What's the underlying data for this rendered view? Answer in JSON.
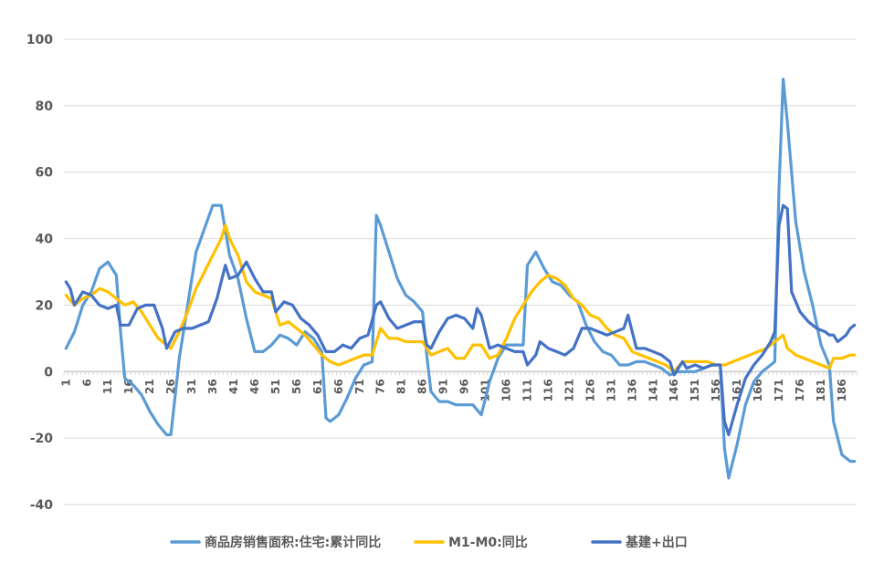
{
  "chart_data": {
    "type": "line",
    "title": "",
    "xlabel": "",
    "ylabel": "",
    "ylim": [
      -40,
      100
    ],
    "ytick_step": 20,
    "x_range": [
      1,
      189
    ],
    "x_ticks": [
      1,
      6,
      11,
      16,
      21,
      26,
      31,
      36,
      41,
      46,
      51,
      56,
      61,
      66,
      71,
      76,
      81,
      86,
      91,
      96,
      101,
      106,
      111,
      116,
      121,
      126,
      131,
      136,
      141,
      146,
      151,
      156,
      161,
      166,
      171,
      176,
      181,
      186
    ],
    "grid": "horizontal",
    "legend_position": "bottom",
    "series": [
      {
        "name": "商品房销售面积:住宅:累计同比",
        "color": "#5B9BD5",
        "keypoints": [
          [
            1,
            7
          ],
          [
            3,
            12
          ],
          [
            5,
            20
          ],
          [
            7,
            24
          ],
          [
            9,
            31
          ],
          [
            11,
            33
          ],
          [
            13,
            29
          ],
          [
            14,
            12
          ],
          [
            15,
            -2
          ],
          [
            17,
            -4
          ],
          [
            19,
            -7
          ],
          [
            21,
            -12
          ],
          [
            23,
            -16
          ],
          [
            25,
            -19
          ],
          [
            26,
            -19
          ],
          [
            28,
            4
          ],
          [
            30,
            20
          ],
          [
            32,
            36
          ],
          [
            34,
            43
          ],
          [
            36,
            50
          ],
          [
            38,
            50
          ],
          [
            40,
            35
          ],
          [
            42,
            28
          ],
          [
            44,
            16
          ],
          [
            46,
            6
          ],
          [
            48,
            6
          ],
          [
            50,
            8
          ],
          [
            52,
            11
          ],
          [
            54,
            10
          ],
          [
            56,
            8
          ],
          [
            58,
            12
          ],
          [
            60,
            10
          ],
          [
            62,
            6
          ],
          [
            63,
            -14
          ],
          [
            64,
            -15
          ],
          [
            66,
            -13
          ],
          [
            68,
            -8
          ],
          [
            70,
            -2
          ],
          [
            72,
            2
          ],
          [
            74,
            3
          ],
          [
            75,
            47
          ],
          [
            76,
            44
          ],
          [
            78,
            36
          ],
          [
            80,
            28
          ],
          [
            82,
            23
          ],
          [
            84,
            21
          ],
          [
            86,
            18
          ],
          [
            87,
            5
          ],
          [
            88,
            -6
          ],
          [
            90,
            -9
          ],
          [
            92,
            -9
          ],
          [
            94,
            -10
          ],
          [
            96,
            -10
          ],
          [
            98,
            -10
          ],
          [
            100,
            -13
          ],
          [
            102,
            -3
          ],
          [
            104,
            4
          ],
          [
            106,
            8
          ],
          [
            108,
            8
          ],
          [
            110,
            8
          ],
          [
            111,
            32
          ],
          [
            113,
            36
          ],
          [
            115,
            31
          ],
          [
            117,
            27
          ],
          [
            119,
            26
          ],
          [
            121,
            23
          ],
          [
            123,
            21
          ],
          [
            125,
            14
          ],
          [
            127,
            9
          ],
          [
            129,
            6
          ],
          [
            131,
            5
          ],
          [
            133,
            2
          ],
          [
            135,
            2
          ],
          [
            137,
            3
          ],
          [
            139,
            3
          ],
          [
            141,
            2
          ],
          [
            143,
            1
          ],
          [
            145,
            -1
          ],
          [
            147,
            0
          ],
          [
            149,
            0
          ],
          [
            151,
            0
          ],
          [
            153,
            1
          ],
          [
            155,
            2
          ],
          [
            157,
            2
          ],
          [
            158,
            -23
          ],
          [
            159,
            -32
          ],
          [
            161,
            -22
          ],
          [
            163,
            -10
          ],
          [
            165,
            -3
          ],
          [
            167,
            0
          ],
          [
            169,
            2
          ],
          [
            170,
            3
          ],
          [
            171,
            55
          ],
          [
            172,
            88
          ],
          [
            173,
            75
          ],
          [
            175,
            45
          ],
          [
            177,
            30
          ],
          [
            179,
            20
          ],
          [
            181,
            8
          ],
          [
            183,
            2
          ],
          [
            184,
            -15
          ],
          [
            186,
            -25
          ],
          [
            188,
            -27
          ],
          [
            189,
            -27
          ]
        ]
      },
      {
        "name": "M1-M0:同比",
        "color": "#FFC000",
        "keypoints": [
          [
            1,
            23
          ],
          [
            3,
            20
          ],
          [
            5,
            22
          ],
          [
            7,
            23
          ],
          [
            9,
            25
          ],
          [
            11,
            24
          ],
          [
            13,
            22
          ],
          [
            15,
            20
          ],
          [
            17,
            21
          ],
          [
            19,
            18
          ],
          [
            21,
            14
          ],
          [
            23,
            10
          ],
          [
            25,
            8
          ],
          [
            26,
            7
          ],
          [
            28,
            12
          ],
          [
            30,
            18
          ],
          [
            32,
            25
          ],
          [
            34,
            30
          ],
          [
            36,
            35
          ],
          [
            38,
            40
          ],
          [
            39,
            44
          ],
          [
            40,
            40
          ],
          [
            42,
            35
          ],
          [
            44,
            27
          ],
          [
            46,
            24
          ],
          [
            48,
            23
          ],
          [
            50,
            22
          ],
          [
            52,
            14
          ],
          [
            54,
            15
          ],
          [
            56,
            13
          ],
          [
            58,
            11
          ],
          [
            60,
            8
          ],
          [
            62,
            5
          ],
          [
            64,
            3
          ],
          [
            66,
            2
          ],
          [
            68,
            3
          ],
          [
            70,
            4
          ],
          [
            72,
            5
          ],
          [
            74,
            5
          ],
          [
            76,
            13
          ],
          [
            78,
            10
          ],
          [
            80,
            10
          ],
          [
            82,
            9
          ],
          [
            84,
            9
          ],
          [
            86,
            9
          ],
          [
            88,
            5
          ],
          [
            90,
            6
          ],
          [
            92,
            7
          ],
          [
            94,
            4
          ],
          [
            96,
            4
          ],
          [
            98,
            8
          ],
          [
            100,
            8
          ],
          [
            102,
            4
          ],
          [
            104,
            5
          ],
          [
            106,
            10
          ],
          [
            108,
            16
          ],
          [
            110,
            20
          ],
          [
            112,
            24
          ],
          [
            114,
            27
          ],
          [
            116,
            29
          ],
          [
            118,
            28
          ],
          [
            120,
            26
          ],
          [
            122,
            22
          ],
          [
            124,
            20
          ],
          [
            126,
            17
          ],
          [
            128,
            16
          ],
          [
            130,
            13
          ],
          [
            132,
            11
          ],
          [
            134,
            10
          ],
          [
            136,
            6
          ],
          [
            138,
            5
          ],
          [
            140,
            4
          ],
          [
            142,
            3
          ],
          [
            144,
            2
          ],
          [
            146,
            0
          ],
          [
            148,
            3
          ],
          [
            150,
            3
          ],
          [
            152,
            3
          ],
          [
            154,
            3
          ],
          [
            156,
            2
          ],
          [
            158,
            2
          ],
          [
            160,
            3
          ],
          [
            162,
            4
          ],
          [
            164,
            5
          ],
          [
            166,
            6
          ],
          [
            168,
            7
          ],
          [
            170,
            9
          ],
          [
            172,
            11
          ],
          [
            173,
            7
          ],
          [
            175,
            5
          ],
          [
            177,
            4
          ],
          [
            179,
            3
          ],
          [
            181,
            2
          ],
          [
            183,
            1
          ],
          [
            184,
            4
          ],
          [
            186,
            4
          ],
          [
            188,
            5
          ],
          [
            189,
            5
          ]
        ]
      },
      {
        "name": "基建+出口",
        "color": "#4472C4",
        "keypoints": [
          [
            1,
            27
          ],
          [
            2,
            25
          ],
          [
            3,
            20
          ],
          [
            5,
            24
          ],
          [
            7,
            23
          ],
          [
            9,
            20
          ],
          [
            11,
            19
          ],
          [
            13,
            20
          ],
          [
            14,
            14
          ],
          [
            16,
            14
          ],
          [
            18,
            19
          ],
          [
            20,
            20
          ],
          [
            22,
            20
          ],
          [
            24,
            13
          ],
          [
            25,
            7
          ],
          [
            27,
            12
          ],
          [
            29,
            13
          ],
          [
            31,
            13
          ],
          [
            33,
            14
          ],
          [
            35,
            15
          ],
          [
            37,
            22
          ],
          [
            39,
            32
          ],
          [
            40,
            28
          ],
          [
            42,
            29
          ],
          [
            44,
            33
          ],
          [
            46,
            28
          ],
          [
            48,
            24
          ],
          [
            50,
            24
          ],
          [
            51,
            18
          ],
          [
            53,
            21
          ],
          [
            55,
            20
          ],
          [
            57,
            16
          ],
          [
            59,
            14
          ],
          [
            61,
            11
          ],
          [
            63,
            6
          ],
          [
            65,
            6
          ],
          [
            67,
            8
          ],
          [
            69,
            7
          ],
          [
            71,
            10
          ],
          [
            73,
            11
          ],
          [
            75,
            20
          ],
          [
            76,
            21
          ],
          [
            78,
            16
          ],
          [
            80,
            13
          ],
          [
            82,
            14
          ],
          [
            84,
            15
          ],
          [
            86,
            15
          ],
          [
            87,
            8
          ],
          [
            88,
            7
          ],
          [
            90,
            12
          ],
          [
            92,
            16
          ],
          [
            94,
            17
          ],
          [
            96,
            16
          ],
          [
            98,
            13
          ],
          [
            99,
            19
          ],
          [
            100,
            17
          ],
          [
            102,
            7
          ],
          [
            104,
            8
          ],
          [
            106,
            7
          ],
          [
            108,
            6
          ],
          [
            110,
            6
          ],
          [
            111,
            2
          ],
          [
            113,
            5
          ],
          [
            114,
            9
          ],
          [
            116,
            7
          ],
          [
            118,
            6
          ],
          [
            120,
            5
          ],
          [
            122,
            7
          ],
          [
            124,
            13
          ],
          [
            126,
            13
          ],
          [
            128,
            12
          ],
          [
            130,
            11
          ],
          [
            132,
            12
          ],
          [
            134,
            13
          ],
          [
            135,
            17
          ],
          [
            137,
            7
          ],
          [
            139,
            7
          ],
          [
            141,
            6
          ],
          [
            143,
            5
          ],
          [
            145,
            3
          ],
          [
            146,
            -1
          ],
          [
            148,
            3
          ],
          [
            149,
            1
          ],
          [
            151,
            2
          ],
          [
            153,
            1
          ],
          [
            155,
            2
          ],
          [
            157,
            2
          ],
          [
            158,
            -15
          ],
          [
            159,
            -19
          ],
          [
            161,
            -10
          ],
          [
            163,
            -2
          ],
          [
            165,
            2
          ],
          [
            167,
            5
          ],
          [
            169,
            9
          ],
          [
            170,
            12
          ],
          [
            171,
            44
          ],
          [
            172,
            50
          ],
          [
            173,
            49
          ],
          [
            174,
            24
          ],
          [
            176,
            18
          ],
          [
            178,
            15
          ],
          [
            180,
            13
          ],
          [
            182,
            12
          ],
          [
            183,
            11
          ],
          [
            184,
            11
          ],
          [
            185,
            9
          ],
          [
            187,
            11
          ],
          [
            188,
            13
          ],
          [
            189,
            14
          ]
        ]
      }
    ]
  }
}
